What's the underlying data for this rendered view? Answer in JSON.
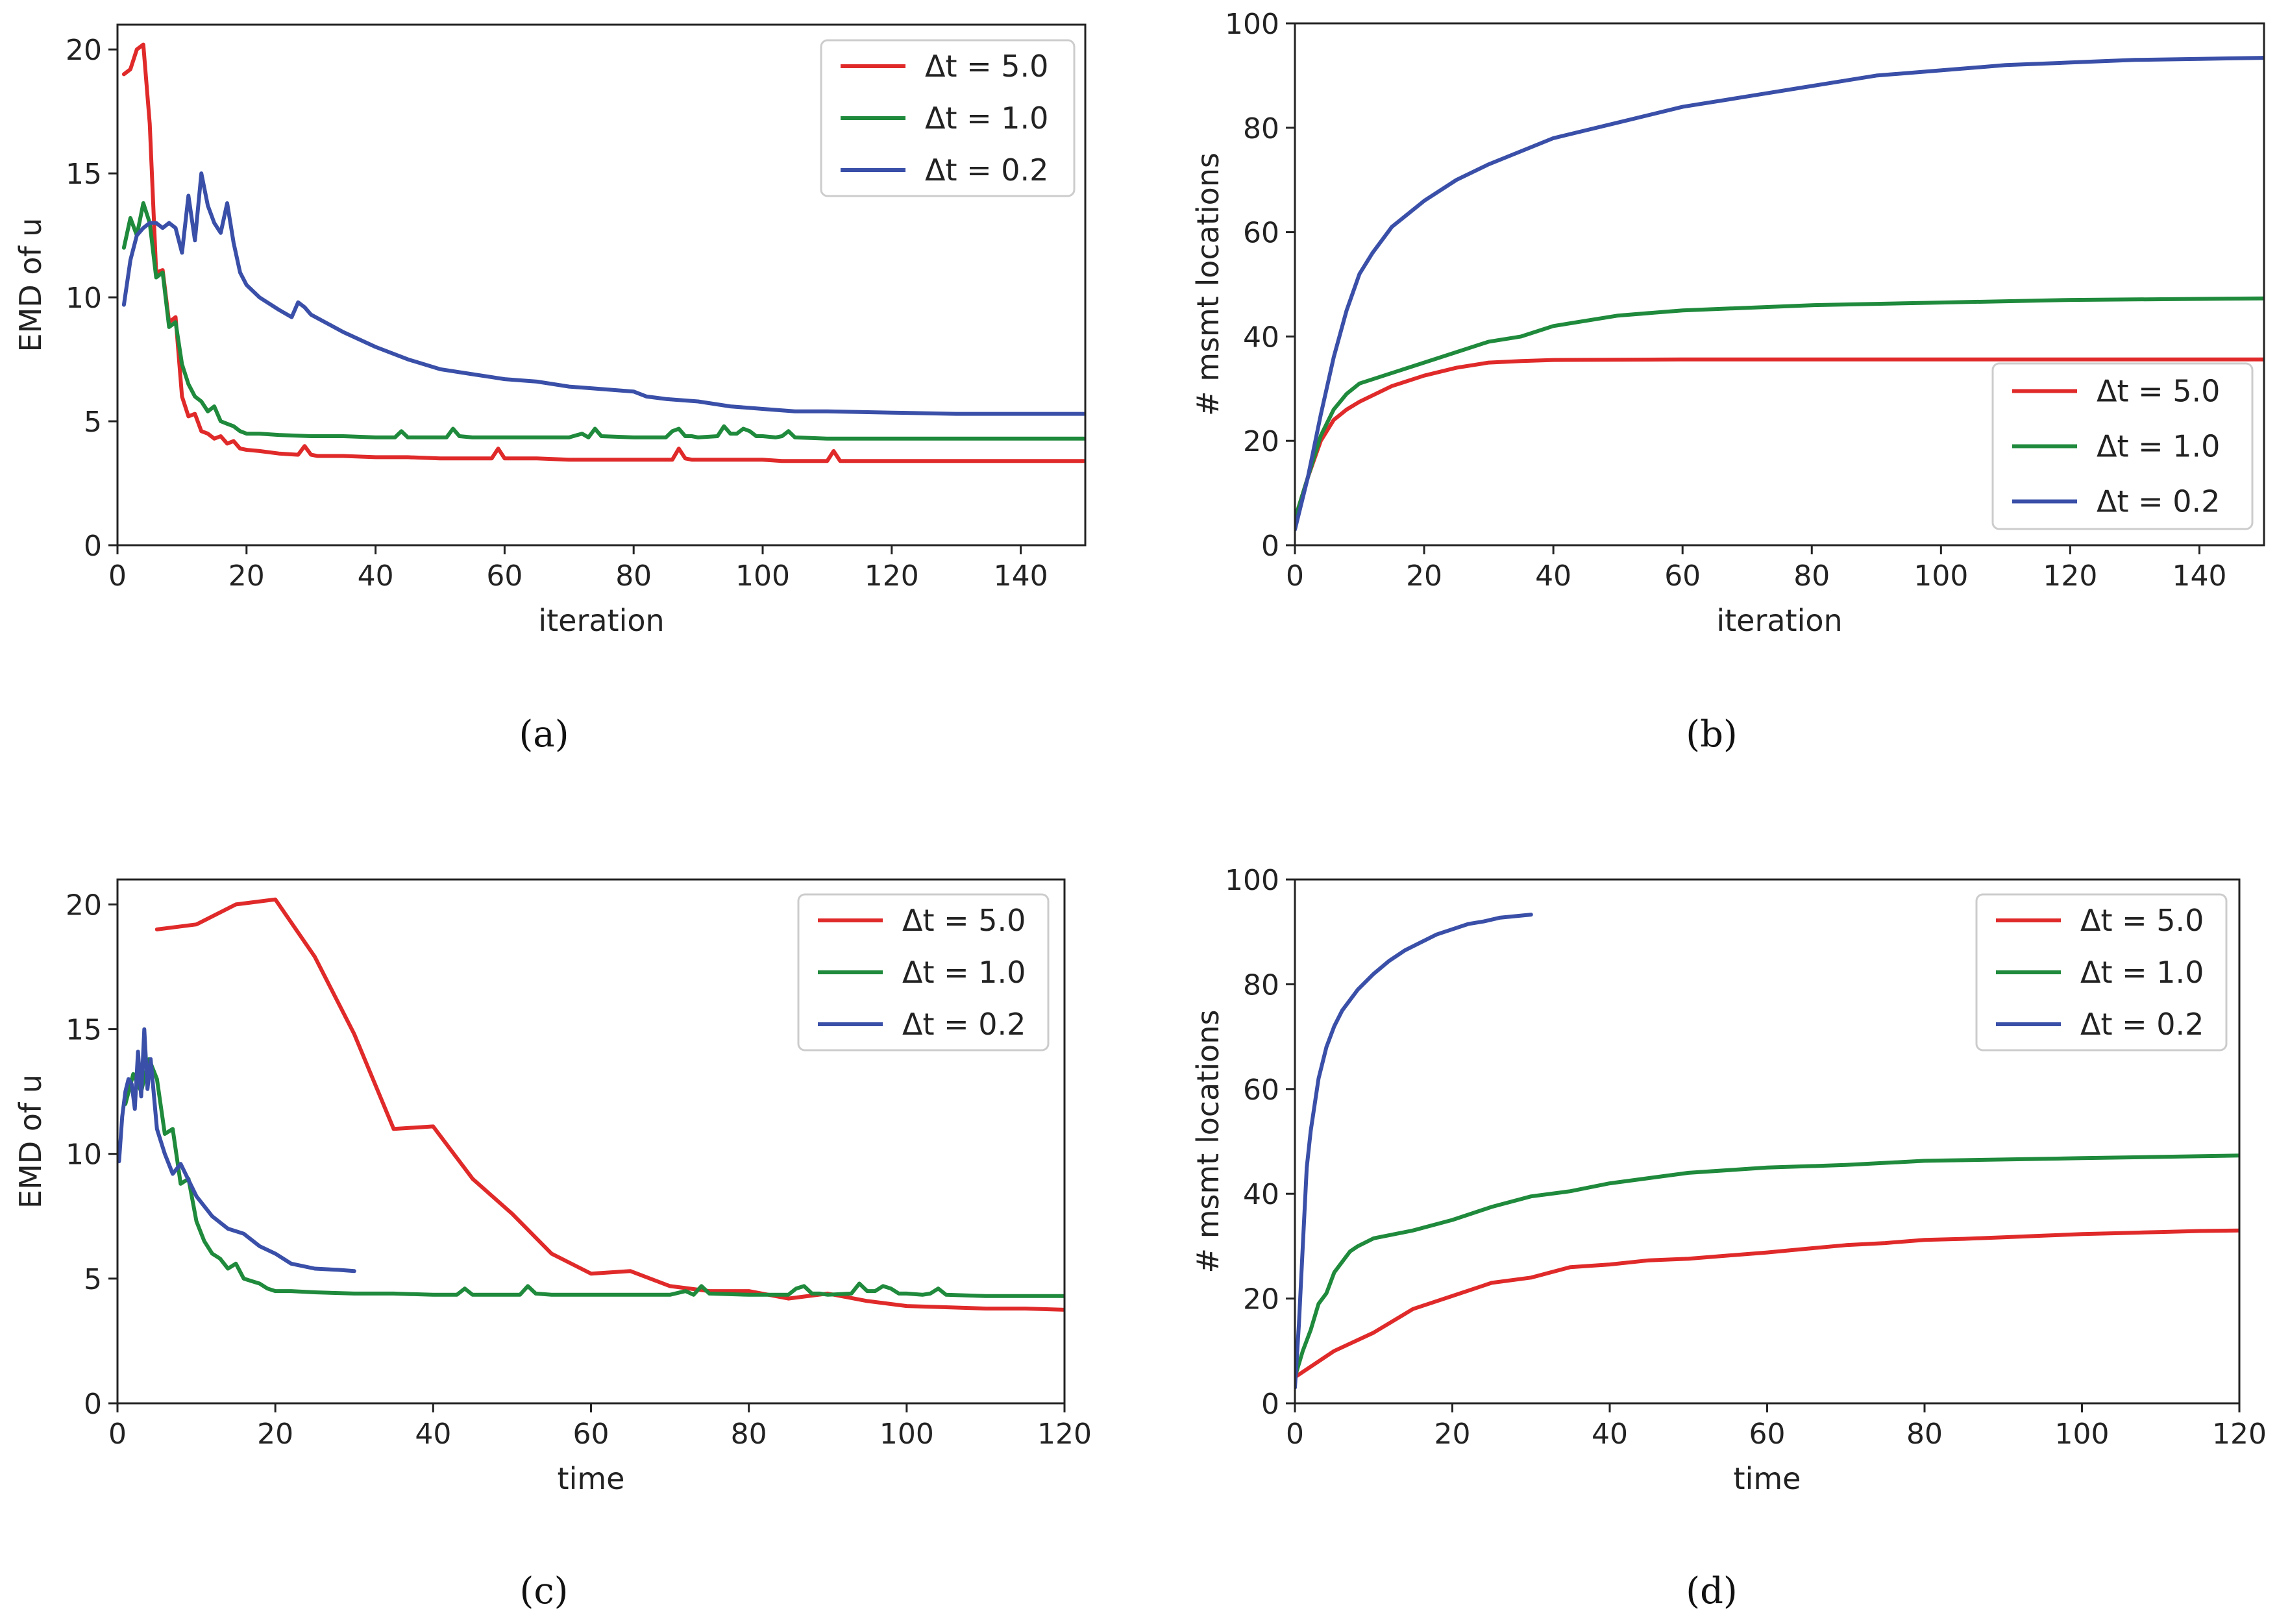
{
  "figure": {
    "colors": {
      "red": "#e02a2a",
      "green": "#1f8a3c",
      "blue": "#3a4fa8"
    }
  },
  "chart_data": [
    {
      "type": "line",
      "panel_label": "(a)",
      "xlabel": "iteration",
      "ylabel": "EMD of u",
      "xlim": [
        0,
        150
      ],
      "ylim": [
        0,
        21
      ],
      "xticks": [
        0,
        20,
        40,
        60,
        80,
        100,
        120,
        140
      ],
      "yticks": [
        0,
        5,
        10,
        15,
        20
      ],
      "legend_position": "top-right",
      "series": [
        {
          "name": "Δt = 5.0",
          "color": "#e02a2a",
          "x": [
            1,
            2,
            3,
            4,
            5,
            6,
            7,
            8,
            9,
            10,
            11,
            12,
            13,
            14,
            15,
            16,
            17,
            18,
            19,
            20,
            22,
            25,
            28,
            29,
            30,
            31,
            35,
            40,
            45,
            50,
            55,
            58,
            59,
            60,
            65,
            70,
            80,
            86,
            87,
            88,
            89,
            90,
            100,
            103,
            105,
            110,
            111,
            112,
            120,
            130,
            140,
            150
          ],
          "y": [
            19.0,
            19.2,
            20.0,
            20.2,
            17.0,
            11.0,
            11.1,
            9.0,
            9.2,
            6.0,
            5.2,
            5.3,
            4.6,
            4.5,
            4.3,
            4.4,
            4.1,
            4.2,
            3.9,
            3.85,
            3.8,
            3.7,
            3.65,
            4.0,
            3.65,
            3.6,
            3.6,
            3.55,
            3.55,
            3.5,
            3.5,
            3.5,
            3.9,
            3.5,
            3.5,
            3.45,
            3.45,
            3.45,
            3.9,
            3.5,
            3.45,
            3.45,
            3.45,
            3.4,
            3.4,
            3.4,
            3.8,
            3.4,
            3.4,
            3.4,
            3.4,
            3.4
          ]
        },
        {
          "name": "Δt = 1.0",
          "color": "#1f8a3c",
          "x": [
            1,
            2,
            3,
            4,
            5,
            6,
            7,
            8,
            9,
            10,
            11,
            12,
            13,
            14,
            15,
            16,
            17,
            18,
            19,
            20,
            22,
            25,
            30,
            35,
            40,
            43,
            44,
            45,
            50,
            51,
            52,
            53,
            55,
            60,
            70,
            72,
            73,
            74,
            75,
            80,
            85,
            86,
            87,
            88,
            89,
            90,
            93,
            94,
            95,
            96,
            97,
            98,
            99,
            100,
            102,
            103,
            104,
            105,
            110,
            120,
            130,
            140,
            150
          ],
          "y": [
            12.0,
            13.2,
            12.5,
            13.8,
            13.0,
            10.8,
            11.0,
            8.8,
            9.0,
            7.3,
            6.5,
            6.0,
            5.8,
            5.4,
            5.6,
            5.0,
            4.9,
            4.8,
            4.6,
            4.5,
            4.5,
            4.45,
            4.4,
            4.4,
            4.35,
            4.35,
            4.6,
            4.35,
            4.35,
            4.35,
            4.7,
            4.4,
            4.35,
            4.35,
            4.35,
            4.5,
            4.35,
            4.7,
            4.4,
            4.35,
            4.35,
            4.6,
            4.7,
            4.4,
            4.4,
            4.35,
            4.4,
            4.8,
            4.5,
            4.5,
            4.7,
            4.6,
            4.4,
            4.4,
            4.35,
            4.4,
            4.6,
            4.35,
            4.3,
            4.3,
            4.3,
            4.3,
            4.3
          ]
        },
        {
          "name": "Δt = 0.2",
          "color": "#3a4fa8",
          "x": [
            1,
            2,
            3,
            4,
            5,
            6,
            7,
            8,
            9,
            10,
            11,
            12,
            13,
            14,
            15,
            16,
            17,
            18,
            19,
            20,
            22,
            25,
            27,
            28,
            29,
            30,
            35,
            40,
            45,
            50,
            55,
            60,
            65,
            70,
            75,
            80,
            82,
            85,
            90,
            95,
            100,
            105,
            110,
            120,
            130,
            140,
            150
          ],
          "y": [
            9.7,
            11.5,
            12.5,
            12.8,
            13.0,
            13.0,
            12.8,
            13.0,
            12.8,
            11.8,
            14.1,
            12.3,
            15.0,
            13.7,
            13.0,
            12.6,
            13.8,
            12.2,
            11.0,
            10.5,
            10.0,
            9.5,
            9.2,
            9.8,
            9.6,
            9.3,
            8.6,
            8.0,
            7.5,
            7.1,
            6.9,
            6.7,
            6.6,
            6.4,
            6.3,
            6.2,
            6.0,
            5.9,
            5.8,
            5.6,
            5.5,
            5.4,
            5.4,
            5.35,
            5.3,
            5.3,
            5.3
          ]
        }
      ]
    },
    {
      "type": "line",
      "panel_label": "(b)",
      "xlabel": "iteration",
      "ylabel": "# msmt locations",
      "xlim": [
        0,
        150
      ],
      "ylim": [
        0,
        100
      ],
      "xticks": [
        0,
        20,
        40,
        60,
        80,
        100,
        120,
        140
      ],
      "yticks": [
        0,
        20,
        40,
        60,
        80,
        100
      ],
      "legend_position": "lower-right",
      "series": [
        {
          "name": "Δt = 5.0",
          "color": "#e02a2a",
          "x": [
            0,
            2,
            4,
            6,
            8,
            10,
            15,
            20,
            25,
            30,
            35,
            40,
            60,
            80,
            100,
            120,
            150
          ],
          "y": [
            5,
            13,
            20,
            24,
            26,
            27.5,
            30.5,
            32.5,
            34,
            35,
            35.3,
            35.5,
            35.6,
            35.6,
            35.6,
            35.6,
            35.6
          ]
        },
        {
          "name": "Δt = 1.0",
          "color": "#1f8a3c",
          "x": [
            0,
            2,
            4,
            6,
            8,
            10,
            15,
            20,
            25,
            30,
            35,
            40,
            50,
            60,
            70,
            80,
            100,
            120,
            150
          ],
          "y": [
            5,
            13,
            21,
            26,
            29,
            31,
            33,
            35,
            37,
            39,
            40,
            42,
            44,
            45,
            45.5,
            46,
            46.5,
            47,
            47.3
          ]
        },
        {
          "name": "Δt = 0.2",
          "color": "#3a4fa8",
          "x": [
            0,
            2,
            4,
            6,
            8,
            10,
            12,
            15,
            20,
            25,
            30,
            40,
            50,
            60,
            70,
            80,
            90,
            100,
            110,
            120,
            130,
            140,
            150
          ],
          "y": [
            3,
            13,
            25,
            36,
            45,
            52,
            56,
            61,
            66,
            70,
            73,
            78,
            81,
            84,
            86,
            88,
            90,
            91,
            92,
            92.5,
            93,
            93.2,
            93.4
          ]
        }
      ]
    },
    {
      "type": "line",
      "panel_label": "(c)",
      "xlabel": "time",
      "ylabel": "EMD of u",
      "xlim": [
        0,
        120
      ],
      "ylim": [
        0,
        21
      ],
      "xticks": [
        0,
        20,
        40,
        60,
        80,
        100,
        120
      ],
      "yticks": [
        0,
        5,
        10,
        15,
        20
      ],
      "legend_position": "top-right",
      "series": [
        {
          "name": "Δt = 5.0",
          "color": "#e02a2a",
          "x": [
            5,
            10,
            15,
            20,
            25,
            30,
            35,
            40,
            45,
            50,
            55,
            60,
            65,
            70,
            75,
            80,
            85,
            90,
            95,
            100,
            105,
            110,
            115,
            120
          ],
          "y": [
            19.0,
            19.2,
            20.0,
            20.2,
            17.9,
            14.8,
            11.0,
            11.1,
            9.0,
            7.6,
            6.0,
            5.2,
            5.3,
            4.7,
            4.5,
            4.5,
            4.2,
            4.4,
            4.1,
            3.9,
            3.85,
            3.8,
            3.8,
            3.75
          ]
        },
        {
          "name": "Δt = 1.0",
          "color": "#1f8a3c",
          "x": [
            1,
            2,
            3,
            4,
            5,
            6,
            7,
            8,
            9,
            10,
            11,
            12,
            13,
            14,
            15,
            16,
            17,
            18,
            19,
            20,
            22,
            25,
            30,
            35,
            40,
            43,
            44,
            45,
            50,
            51,
            52,
            53,
            55,
            60,
            70,
            72,
            73,
            74,
            75,
            80,
            85,
            86,
            87,
            88,
            89,
            90,
            93,
            94,
            95,
            96,
            97,
            98,
            99,
            100,
            102,
            103,
            104,
            105,
            110,
            120
          ],
          "y": [
            12.0,
            13.2,
            12.5,
            13.8,
            13.0,
            10.8,
            11.0,
            8.8,
            9.0,
            7.3,
            6.5,
            6.0,
            5.8,
            5.4,
            5.6,
            5.0,
            4.9,
            4.8,
            4.6,
            4.5,
            4.5,
            4.45,
            4.4,
            4.4,
            4.35,
            4.35,
            4.6,
            4.35,
            4.35,
            4.35,
            4.7,
            4.4,
            4.35,
            4.35,
            4.35,
            4.5,
            4.35,
            4.7,
            4.4,
            4.35,
            4.35,
            4.6,
            4.7,
            4.4,
            4.4,
            4.35,
            4.4,
            4.8,
            4.5,
            4.5,
            4.7,
            4.6,
            4.4,
            4.4,
            4.35,
            4.4,
            4.6,
            4.35,
            4.3,
            4.3
          ]
        },
        {
          "name": "Δt = 0.2",
          "color": "#3a4fa8",
          "x": [
            0.2,
            0.6,
            1,
            1.4,
            1.8,
            2.2,
            2.6,
            3.0,
            3.4,
            3.8,
            4.2,
            5,
            6,
            7,
            8,
            10,
            12,
            14,
            16,
            18,
            20,
            22,
            25,
            28,
            30
          ],
          "y": [
            9.7,
            11.5,
            12.5,
            13.0,
            12.8,
            11.8,
            14.1,
            12.3,
            15.0,
            12.6,
            13.8,
            11.0,
            10.0,
            9.2,
            9.6,
            8.3,
            7.5,
            7.0,
            6.8,
            6.3,
            6.0,
            5.6,
            5.4,
            5.35,
            5.3
          ]
        }
      ]
    },
    {
      "type": "line",
      "panel_label": "(d)",
      "xlabel": "time",
      "ylabel": "# msmt locations",
      "xlim": [
        0,
        120
      ],
      "ylim": [
        0,
        100
      ],
      "xticks": [
        0,
        20,
        40,
        60,
        80,
        100,
        120
      ],
      "yticks": [
        0,
        20,
        40,
        60,
        80,
        100
      ],
      "legend_position": "top-right",
      "series": [
        {
          "name": "Δt = 5.0",
          "color": "#e02a2a",
          "x": [
            0,
            5,
            10,
            15,
            20,
            25,
            30,
            35,
            40,
            45,
            50,
            55,
            60,
            65,
            70,
            75,
            80,
            85,
            90,
            95,
            100,
            105,
            110,
            115,
            120
          ],
          "y": [
            5,
            10,
            13.5,
            18,
            20.5,
            23,
            24,
            26,
            26.5,
            27.3,
            27.6,
            28.2,
            28.8,
            29.5,
            30.2,
            30.6,
            31.2,
            31.4,
            31.7,
            32.0,
            32.3,
            32.5,
            32.7,
            32.9,
            33.0
          ]
        },
        {
          "name": "Δt = 1.0",
          "color": "#1f8a3c",
          "x": [
            0,
            1,
            2,
            3,
            4,
            5,
            6,
            7,
            8,
            10,
            15,
            20,
            25,
            30,
            35,
            40,
            50,
            60,
            70,
            80,
            100,
            120
          ],
          "y": [
            5,
            10,
            14,
            19,
            21,
            25,
            27,
            29,
            30,
            31.5,
            33,
            35,
            37.5,
            39.5,
            40.5,
            42,
            44,
            45,
            45.5,
            46.3,
            46.8,
            47.3
          ]
        },
        {
          "name": "Δt = 0.2",
          "color": "#3a4fa8",
          "x": [
            0,
            0.5,
            1,
            1.5,
            2,
            3,
            4,
            5,
            6,
            8,
            10,
            12,
            14,
            16,
            18,
            20,
            22,
            24,
            26,
            28,
            30
          ],
          "y": [
            3,
            15,
            30,
            45,
            52,
            62,
            68,
            72,
            75,
            79,
            82,
            84.5,
            86.5,
            88,
            89.5,
            90.5,
            91.5,
            92,
            92.7,
            93,
            93.3
          ]
        }
      ]
    }
  ]
}
